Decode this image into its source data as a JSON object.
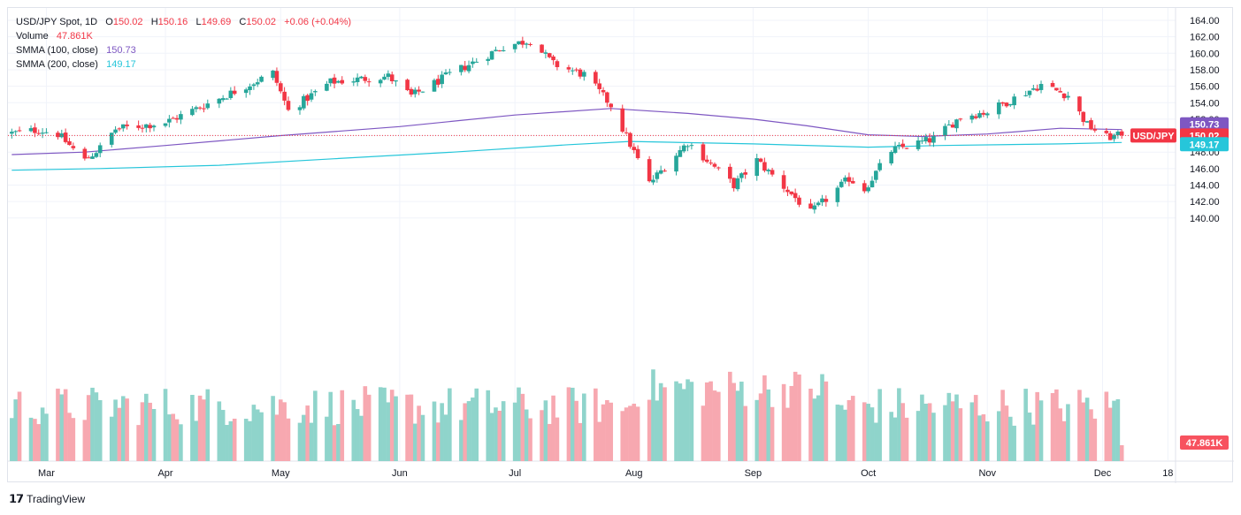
{
  "header": {
    "symbol": "USD/JPY Spot, 1D",
    "o_label": "O",
    "o_value": "150.02",
    "h_label": "H",
    "h_value": "150.16",
    "l_label": "L",
    "l_value": "149.69",
    "c_label": "C",
    "c_value": "150.02",
    "change": "+0.06 (+0.04%)",
    "volume_label": "Volume",
    "volume_value": "47.861K",
    "smma100_label": "SMMA (100, close)",
    "smma100_value": "150.73",
    "smma200_label": "SMMA (200, close)",
    "smma200_value": "149.17"
  },
  "badges": {
    "smma100": "150.73",
    "symbol": "USD/JPY",
    "price": "150.02",
    "smma200": "149.17",
    "volume": "47.861K"
  },
  "footer": {
    "brand": "TradingView"
  },
  "colors": {
    "up": "#26a69a",
    "down": "#f23645",
    "vol_up": "#8fd4cb",
    "vol_down": "#f7a8b0",
    "smma100": "#7e57c2",
    "smma200": "#26c6da"
  },
  "chart_data": {
    "type": "candlestick",
    "y_ticks": [
      "164.00",
      "162.00",
      "160.00",
      "158.00",
      "156.00",
      "154.00",
      "152.00",
      "150.00",
      "148.00",
      "146.00",
      "144.00",
      "142.00",
      "140.00"
    ],
    "ylim": [
      139.0,
      164.3
    ],
    "x_ticks": [
      "Mar",
      "Apr",
      "May",
      "Jun",
      "Jul",
      "Aug",
      "Sep",
      "Oct",
      "Nov",
      "Dec",
      "18"
    ],
    "grid": true,
    "close_waypoints": [
      {
        "date": "2024-02-21",
        "close": 150.3
      },
      {
        "date": "2024-02-28",
        "close": 150.7
      },
      {
        "date": "2024-03-04",
        "close": 150.2
      },
      {
        "date": "2024-03-11",
        "close": 147.0
      },
      {
        "date": "2024-03-15",
        "close": 148.5
      },
      {
        "date": "2024-03-19",
        "close": 150.8
      },
      {
        "date": "2024-04-01",
        "close": 151.6
      },
      {
        "date": "2024-04-15",
        "close": 154.5
      },
      {
        "date": "2024-04-29",
        "close": 157.6
      },
      {
        "date": "2024-05-03",
        "close": 153.0
      },
      {
        "date": "2024-05-14",
        "close": 156.5
      },
      {
        "date": "2024-05-29",
        "close": 157.2
      },
      {
        "date": "2024-06-04",
        "close": 154.8
      },
      {
        "date": "2024-06-14",
        "close": 157.4
      },
      {
        "date": "2024-06-28",
        "close": 160.8
      },
      {
        "date": "2024-07-05",
        "close": 161.6
      },
      {
        "date": "2024-07-11",
        "close": 158.7
      },
      {
        "date": "2024-07-19",
        "close": 157.4
      },
      {
        "date": "2024-07-26",
        "close": 153.7
      },
      {
        "date": "2024-08-05",
        "close": 144.2
      },
      {
        "date": "2024-08-15",
        "close": 149.2
      },
      {
        "date": "2024-08-27",
        "close": 144.0
      },
      {
        "date": "2024-09-02",
        "close": 147.0
      },
      {
        "date": "2024-09-16",
        "close": 140.6
      },
      {
        "date": "2024-09-26",
        "close": 144.8
      },
      {
        "date": "2024-09-30",
        "close": 143.5
      },
      {
        "date": "2024-10-07",
        "close": 148.2
      },
      {
        "date": "2024-10-18",
        "close": 149.6
      },
      {
        "date": "2024-10-25",
        "close": 152.3
      },
      {
        "date": "2024-11-01",
        "close": 152.9
      },
      {
        "date": "2024-11-15",
        "close": 156.2
      },
      {
        "date": "2024-11-22",
        "close": 154.9
      },
      {
        "date": "2024-11-27",
        "close": 151.3
      },
      {
        "date": "2024-12-02",
        "close": 149.8
      },
      {
        "date": "2024-12-06",
        "close": 150.02
      }
    ],
    "smma100": [
      {
        "date": "2024-02-21",
        "value": 147.7
      },
      {
        "date": "2024-03-11",
        "value": 148.0
      },
      {
        "date": "2024-04-01",
        "value": 148.8
      },
      {
        "date": "2024-05-01",
        "value": 150.0
      },
      {
        "date": "2024-06-01",
        "value": 151.1
      },
      {
        "date": "2024-07-01",
        "value": 152.5
      },
      {
        "date": "2024-07-26",
        "value": 153.3
      },
      {
        "date": "2024-08-15",
        "value": 152.7
      },
      {
        "date": "2024-09-01",
        "value": 152.0
      },
      {
        "date": "2024-09-15",
        "value": 151.2
      },
      {
        "date": "2024-10-01",
        "value": 150.1
      },
      {
        "date": "2024-10-15",
        "value": 149.9
      },
      {
        "date": "2024-11-01",
        "value": 150.2
      },
      {
        "date": "2024-11-20",
        "value": 150.9
      },
      {
        "date": "2024-12-06",
        "value": 150.73
      }
    ],
    "smma200": [
      {
        "date": "2024-02-21",
        "value": 145.8
      },
      {
        "date": "2024-03-15",
        "value": 146.0
      },
      {
        "date": "2024-04-15",
        "value": 146.4
      },
      {
        "date": "2024-05-15",
        "value": 147.2
      },
      {
        "date": "2024-06-15",
        "value": 148.0
      },
      {
        "date": "2024-07-15",
        "value": 148.9
      },
      {
        "date": "2024-07-31",
        "value": 149.3
      },
      {
        "date": "2024-09-01",
        "value": 149.0
      },
      {
        "date": "2024-10-01",
        "value": 148.6
      },
      {
        "date": "2024-10-20",
        "value": 148.8
      },
      {
        "date": "2024-11-20",
        "value": 149.0
      },
      {
        "date": "2024-12-06",
        "value": 149.17
      }
    ]
  }
}
